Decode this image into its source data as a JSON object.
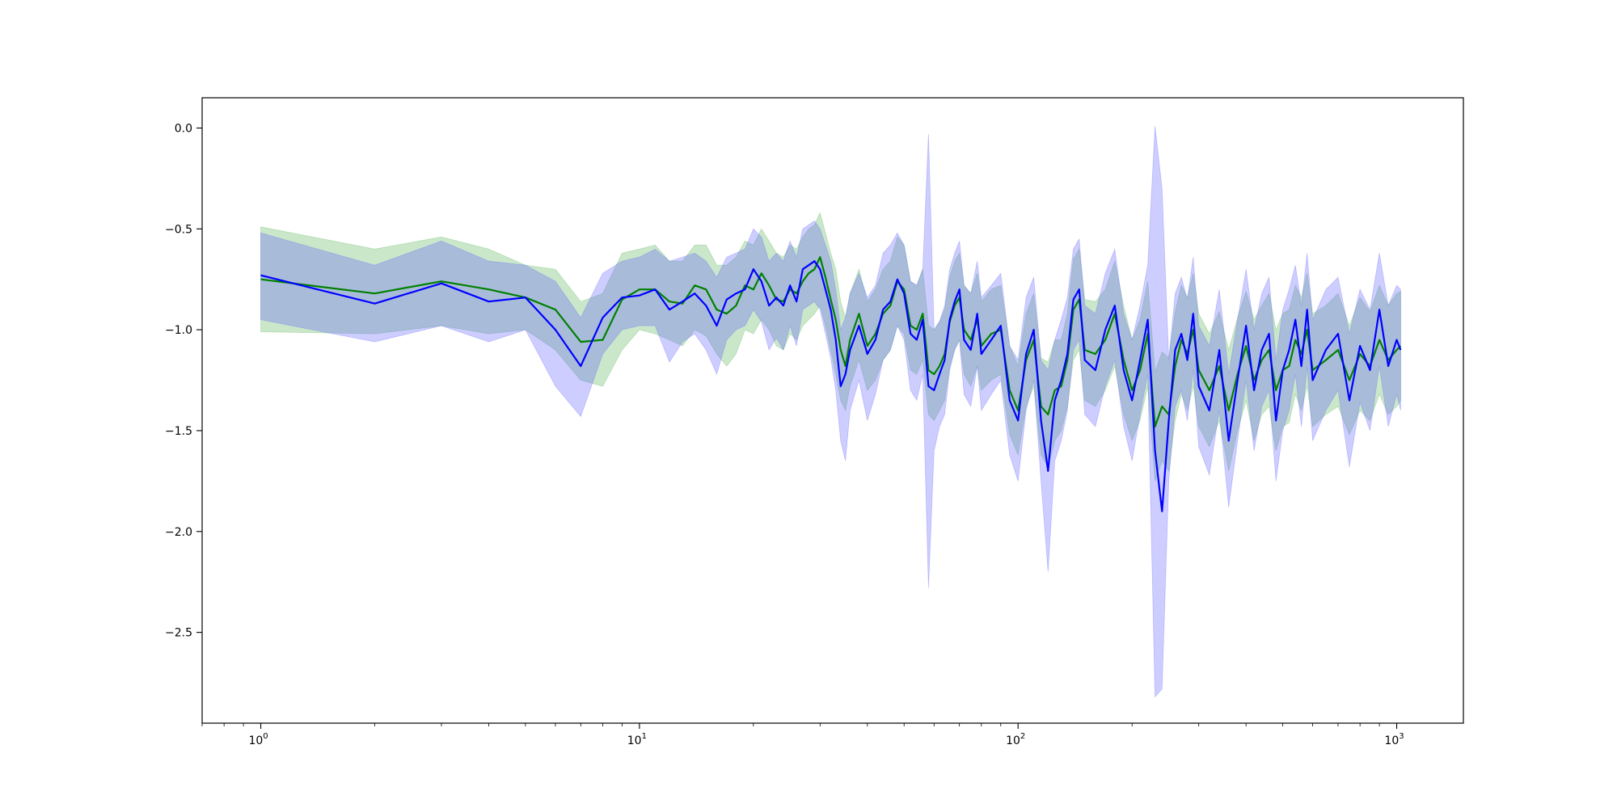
{
  "chart_data": {
    "type": "line",
    "title": "",
    "xlabel": "",
    "ylabel": "",
    "xscale": "log",
    "xlim": [
      0.7,
      1500
    ],
    "ylim": [
      -2.95,
      0.15
    ],
    "grid": false,
    "legend": "none",
    "x_ticks": [
      {
        "value": 1,
        "label_base": "10",
        "label_exp": "0"
      },
      {
        "value": 10,
        "label_base": "10",
        "label_exp": "1"
      },
      {
        "value": 100,
        "label_base": "10",
        "label_exp": "2"
      },
      {
        "value": 1000,
        "label_base": "10",
        "label_exp": "3"
      }
    ],
    "y_ticks": [
      {
        "value": 0.0,
        "label": "0.0"
      },
      {
        "value": -0.5,
        "label": "−0.5"
      },
      {
        "value": -1.0,
        "label": "−1.0"
      },
      {
        "value": -1.5,
        "label": "−1.5"
      },
      {
        "value": -2.0,
        "label": "−2.0"
      },
      {
        "value": -2.5,
        "label": "−2.5"
      }
    ],
    "series": [
      {
        "color": "#008000",
        "band_color": "#2ca02c",
        "band_opacity": 0.25,
        "x": [
          1,
          2,
          3,
          4,
          5,
          6,
          7,
          8,
          9,
          10,
          11,
          12,
          13,
          14,
          15,
          16,
          17,
          18,
          19,
          20,
          21,
          22,
          23,
          24,
          25,
          26,
          27,
          28,
          29,
          30,
          31,
          32,
          33,
          34,
          35,
          36,
          38,
          40,
          42,
          44,
          46,
          48,
          50,
          52,
          54,
          56,
          58,
          60,
          62,
          64,
          66,
          68,
          70,
          72,
          75,
          78,
          80,
          85,
          90,
          95,
          100,
          105,
          110,
          115,
          120,
          125,
          130,
          135,
          140,
          145,
          150,
          160,
          170,
          180,
          190,
          200,
          210,
          220,
          230,
          240,
          250,
          260,
          270,
          280,
          290,
          300,
          320,
          340,
          360,
          380,
          400,
          420,
          440,
          460,
          480,
          500,
          520,
          540,
          560,
          580,
          600,
          650,
          700,
          750,
          800,
          850,
          900,
          950,
          1000,
          1024
        ],
        "y": [
          -0.75,
          -0.82,
          -0.76,
          -0.8,
          -0.84,
          -0.9,
          -1.06,
          -1.05,
          -0.85,
          -0.8,
          -0.8,
          -0.86,
          -0.87,
          -0.78,
          -0.8,
          -0.9,
          -0.92,
          -0.88,
          -0.78,
          -0.8,
          -0.72,
          -0.78,
          -0.85,
          -0.86,
          -0.8,
          -0.82,
          -0.76,
          -0.72,
          -0.7,
          -0.64,
          -0.74,
          -0.85,
          -0.95,
          -1.1,
          -1.18,
          -1.05,
          -0.92,
          -1.08,
          -1.02,
          -0.92,
          -0.88,
          -0.76,
          -0.8,
          -0.98,
          -1.0,
          -0.92,
          -1.2,
          -1.22,
          -1.18,
          -1.12,
          -0.96,
          -0.88,
          -0.84,
          -1.0,
          -1.05,
          -0.95,
          -1.08,
          -1.02,
          -1.0,
          -1.3,
          -1.4,
          -1.15,
          -1.05,
          -1.38,
          -1.42,
          -1.3,
          -1.28,
          -1.15,
          -0.9,
          -0.85,
          -1.1,
          -1.12,
          -1.05,
          -0.92,
          -1.15,
          -1.3,
          -1.2,
          -1.02,
          -1.48,
          -1.38,
          -1.42,
          -1.18,
          -1.05,
          -1.12,
          -1.0,
          -1.2,
          -1.3,
          -1.18,
          -1.4,
          -1.22,
          -1.08,
          -1.25,
          -1.15,
          -1.1,
          -1.3,
          -1.2,
          -1.18,
          -1.05,
          -1.12,
          -1.0,
          -1.2,
          -1.15,
          -1.1,
          -1.25,
          -1.12,
          -1.18,
          -1.05,
          -1.15,
          -1.1,
          -1.08
        ],
        "lower": [
          -1.01,
          -1.02,
          -0.98,
          -1.02,
          -1.0,
          -1.1,
          -1.25,
          -1.28,
          -1.1,
          -1.0,
          -1.02,
          -1.05,
          -1.08,
          -1.0,
          -1.03,
          -1.12,
          -1.18,
          -1.12,
          -1.0,
          -1.02,
          -0.95,
          -1.0,
          -1.08,
          -1.1,
          -1.02,
          -1.05,
          -0.98,
          -0.95,
          -0.92,
          -0.88,
          -0.98,
          -1.1,
          -1.22,
          -1.35,
          -1.4,
          -1.28,
          -1.15,
          -1.3,
          -1.25,
          -1.15,
          -1.1,
          -0.98,
          -1.02,
          -1.2,
          -1.22,
          -1.15,
          -1.42,
          -1.45,
          -1.4,
          -1.35,
          -1.18,
          -1.1,
          -1.05,
          -1.22,
          -1.28,
          -1.18,
          -1.3,
          -1.25,
          -1.22,
          -1.52,
          -1.62,
          -1.38,
          -1.28,
          -1.62,
          -1.68,
          -1.55,
          -1.5,
          -1.38,
          -1.15,
          -1.1,
          -1.35,
          -1.38,
          -1.3,
          -1.18,
          -1.42,
          -1.55,
          -1.45,
          -1.28,
          -1.75,
          -1.65,
          -1.7,
          -1.45,
          -1.32,
          -1.4,
          -1.28,
          -1.48,
          -1.58,
          -1.45,
          -1.7,
          -1.5,
          -1.35,
          -1.55,
          -1.42,
          -1.38,
          -1.6,
          -1.48,
          -1.46,
          -1.32,
          -1.4,
          -1.28,
          -1.48,
          -1.42,
          -1.38,
          -1.52,
          -1.4,
          -1.45,
          -1.32,
          -1.42,
          -1.38,
          -1.35
        ],
        "upper": [
          -0.49,
          -0.6,
          -0.54,
          -0.6,
          -0.68,
          -0.7,
          -0.86,
          -0.82,
          -0.62,
          -0.6,
          -0.58,
          -0.66,
          -0.66,
          -0.58,
          -0.58,
          -0.68,
          -0.68,
          -0.64,
          -0.56,
          -0.58,
          -0.5,
          -0.56,
          -0.62,
          -0.64,
          -0.58,
          -0.6,
          -0.54,
          -0.5,
          -0.48,
          -0.42,
          -0.52,
          -0.62,
          -0.7,
          -0.86,
          -0.94,
          -0.82,
          -0.7,
          -0.86,
          -0.8,
          -0.7,
          -0.66,
          -0.54,
          -0.58,
          -0.76,
          -0.78,
          -0.7,
          -0.98,
          -1.0,
          -0.96,
          -0.9,
          -0.74,
          -0.66,
          -0.62,
          -0.78,
          -0.82,
          -0.72,
          -0.86,
          -0.8,
          -0.78,
          -1.08,
          -1.18,
          -0.92,
          -0.82,
          -1.14,
          -1.16,
          -1.05,
          -1.05,
          -0.92,
          -0.65,
          -0.6,
          -0.85,
          -0.86,
          -0.8,
          -0.66,
          -0.88,
          -1.05,
          -0.95,
          -0.76,
          -1.21,
          -1.11,
          -1.14,
          -0.91,
          -0.78,
          -0.84,
          -0.72,
          -0.92,
          -1.02,
          -0.91,
          -1.1,
          -0.94,
          -0.81,
          -0.95,
          -0.88,
          -0.82,
          -1.0,
          -0.92,
          -0.9,
          -0.78,
          -0.84,
          -0.72,
          -0.92,
          -0.88,
          -0.82,
          -0.98,
          -0.84,
          -0.91,
          -0.78,
          -0.88,
          -0.82,
          -0.81
        ]
      },
      {
        "color": "#0000ff",
        "band_color": "#5b5bff",
        "band_opacity": 0.3,
        "x": [
          1,
          2,
          3,
          4,
          5,
          6,
          7,
          8,
          9,
          10,
          11,
          12,
          13,
          14,
          15,
          16,
          17,
          18,
          19,
          20,
          21,
          22,
          23,
          24,
          25,
          26,
          27,
          28,
          29,
          30,
          31,
          32,
          33,
          34,
          35,
          36,
          38,
          40,
          42,
          44,
          46,
          48,
          50,
          52,
          54,
          56,
          58,
          60,
          62,
          64,
          66,
          68,
          70,
          72,
          75,
          78,
          80,
          85,
          90,
          95,
          100,
          105,
          110,
          115,
          120,
          125,
          130,
          135,
          140,
          145,
          150,
          160,
          170,
          180,
          190,
          200,
          210,
          220,
          230,
          240,
          250,
          260,
          270,
          280,
          290,
          300,
          320,
          340,
          360,
          380,
          400,
          420,
          440,
          460,
          480,
          500,
          520,
          540,
          560,
          580,
          600,
          650,
          700,
          750,
          800,
          850,
          900,
          950,
          1000,
          1024
        ],
        "y": [
          -0.73,
          -0.87,
          -0.77,
          -0.86,
          -0.84,
          -1.0,
          -1.18,
          -0.94,
          -0.84,
          -0.83,
          -0.8,
          -0.9,
          -0.86,
          -0.82,
          -0.88,
          -0.98,
          -0.85,
          -0.82,
          -0.8,
          -0.7,
          -0.76,
          -0.88,
          -0.84,
          -0.88,
          -0.78,
          -0.86,
          -0.7,
          -0.68,
          -0.66,
          -0.7,
          -0.8,
          -0.9,
          -1.05,
          -1.28,
          -1.22,
          -1.1,
          -0.98,
          -1.12,
          -1.05,
          -0.9,
          -0.86,
          -0.75,
          -0.82,
          -1.02,
          -1.05,
          -0.95,
          -1.28,
          -1.3,
          -1.22,
          -1.15,
          -0.95,
          -0.86,
          -0.8,
          -1.05,
          -1.1,
          -0.92,
          -1.12,
          -1.05,
          -0.98,
          -1.35,
          -1.45,
          -1.12,
          -1.0,
          -1.45,
          -1.7,
          -1.35,
          -1.25,
          -1.12,
          -0.85,
          -0.8,
          -1.15,
          -1.2,
          -1.0,
          -0.88,
          -1.2,
          -1.35,
          -1.15,
          -0.95,
          -1.6,
          -1.9,
          -1.45,
          -1.1,
          -1.02,
          -1.15,
          -0.92,
          -1.28,
          -1.4,
          -1.1,
          -1.55,
          -1.25,
          -0.98,
          -1.3,
          -1.1,
          -1.02,
          -1.45,
          -1.2,
          -1.1,
          -0.95,
          -1.18,
          -0.9,
          -1.25,
          -1.1,
          -1.02,
          -1.35,
          -1.08,
          -1.2,
          -0.9,
          -1.18,
          -1.05,
          -1.1
        ],
        "lower": [
          -0.95,
          -1.06,
          -0.98,
          -1.06,
          -1.0,
          -1.28,
          -1.43,
          -1.12,
          -1.0,
          -0.98,
          -0.98,
          -1.16,
          -1.06,
          -1.02,
          -1.1,
          -1.22,
          -1.05,
          -1.0,
          -0.98,
          -0.9,
          -0.96,
          -1.1,
          -1.04,
          -1.1,
          -0.98,
          -1.08,
          -0.9,
          -0.88,
          -0.86,
          -0.9,
          -1.02,
          -1.14,
          -1.3,
          -1.55,
          -1.65,
          -1.4,
          -1.25,
          -1.45,
          -1.32,
          -1.15,
          -1.1,
          -0.98,
          -1.05,
          -1.3,
          -1.35,
          -1.22,
          -2.28,
          -1.6,
          -1.48,
          -1.42,
          -1.2,
          -1.1,
          -1.05,
          -1.32,
          -1.38,
          -1.18,
          -1.4,
          -1.32,
          -1.25,
          -1.62,
          -1.75,
          -1.4,
          -1.25,
          -1.75,
          -2.2,
          -1.65,
          -1.55,
          -1.4,
          -1.1,
          -1.05,
          -1.42,
          -1.48,
          -1.28,
          -1.15,
          -1.48,
          -1.65,
          -1.42,
          -1.22,
          -2.82,
          -2.78,
          -1.75,
          -1.38,
          -1.3,
          -1.45,
          -1.2,
          -1.58,
          -1.72,
          -1.4,
          -1.88,
          -1.55,
          -1.25,
          -1.6,
          -1.38,
          -1.3,
          -1.75,
          -1.5,
          -1.4,
          -1.22,
          -1.48,
          -1.18,
          -1.55,
          -1.4,
          -1.3,
          -1.68,
          -1.36,
          -1.5,
          -1.18,
          -1.48,
          -1.32,
          -1.4
        ],
        "upper": [
          -0.52,
          -0.68,
          -0.56,
          -0.66,
          -0.68,
          -0.76,
          -0.94,
          -0.72,
          -0.66,
          -0.64,
          -0.6,
          -0.66,
          -0.64,
          -0.62,
          -0.66,
          -0.74,
          -0.64,
          -0.62,
          -0.6,
          -0.5,
          -0.54,
          -0.66,
          -0.62,
          -0.66,
          -0.56,
          -0.64,
          -0.5,
          -0.48,
          -0.46,
          -0.5,
          -0.58,
          -0.66,
          -0.8,
          -1.0,
          -0.94,
          -0.82,
          -0.72,
          -0.84,
          -0.78,
          -0.62,
          -0.58,
          -0.52,
          -0.58,
          -0.76,
          -0.78,
          -0.7,
          -0.03,
          -1.0,
          -0.96,
          -0.88,
          -0.7,
          -0.62,
          -0.56,
          -0.78,
          -0.82,
          -0.66,
          -0.84,
          -0.78,
          -0.72,
          -1.08,
          -1.15,
          -0.84,
          -0.74,
          -1.15,
          -1.2,
          -1.05,
          -0.95,
          -0.84,
          -0.6,
          -0.55,
          -0.88,
          -0.92,
          -0.72,
          -0.6,
          -0.92,
          -1.05,
          -0.88,
          -0.68,
          0.01,
          -0.3,
          -1.15,
          -0.82,
          -0.74,
          -0.85,
          -0.64,
          -0.98,
          -1.08,
          -0.8,
          -1.22,
          -0.95,
          -0.7,
          -1.0,
          -0.82,
          -0.74,
          -1.15,
          -0.9,
          -0.8,
          -0.68,
          -0.88,
          -0.62,
          -0.95,
          -0.8,
          -0.74,
          -1.02,
          -0.8,
          -0.9,
          -0.62,
          -0.88,
          -0.78,
          -0.8
        ]
      }
    ]
  }
}
